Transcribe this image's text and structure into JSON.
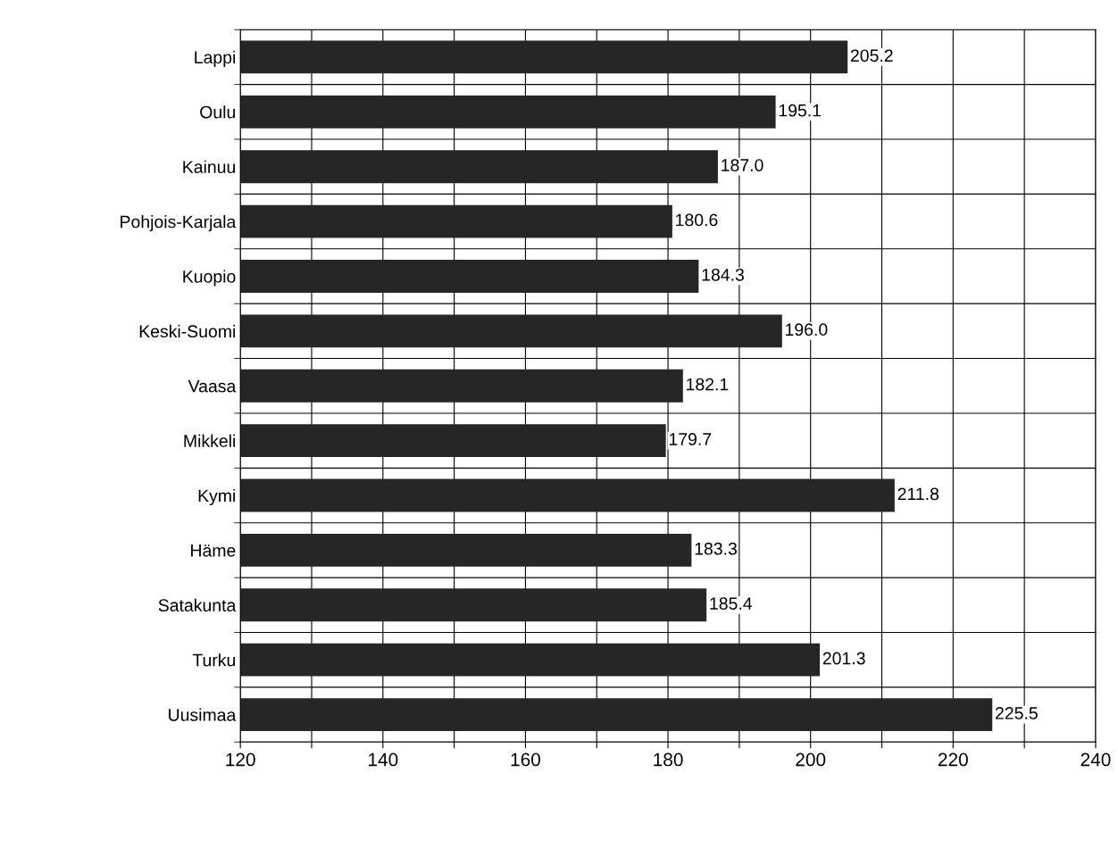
{
  "chart_data": {
    "type": "bar",
    "orientation": "horizontal",
    "categories": [
      "Lappi",
      "Oulu",
      "Kainuu",
      "Pohjois-Karjala",
      "Kuopio",
      "Keski-Suomi",
      "Vaasa",
      "Mikkeli",
      "Kymi",
      "Häme",
      "Satakunta",
      "Turku",
      "Uusimaa"
    ],
    "values": [
      205.2,
      195.1,
      187.0,
      180.6,
      184.3,
      196.0,
      182.1,
      179.7,
      211.8,
      183.3,
      185.4,
      201.3,
      225.5
    ],
    "value_labels": [
      "205.2",
      "195.1",
      "187.0",
      "180.6",
      "184.3",
      "196.0",
      "182.1",
      "179.7",
      "211.8",
      "183.3",
      "185.4",
      "201.3",
      "225.5"
    ],
    "color": "#262626",
    "xlim": [
      120,
      240
    ],
    "xticks": [
      120,
      {
        "value": 130,
        "label": null
      },
      140,
      {
        "value": 150,
        "label": null
      },
      160,
      {
        "value": 170,
        "label": null
      },
      180,
      {
        "value": 190,
        "label": null
      },
      200,
      {
        "value": 210,
        "label": null
      },
      220,
      {
        "value": 230,
        "label": null
      },
      240
    ],
    "grid": true
  }
}
